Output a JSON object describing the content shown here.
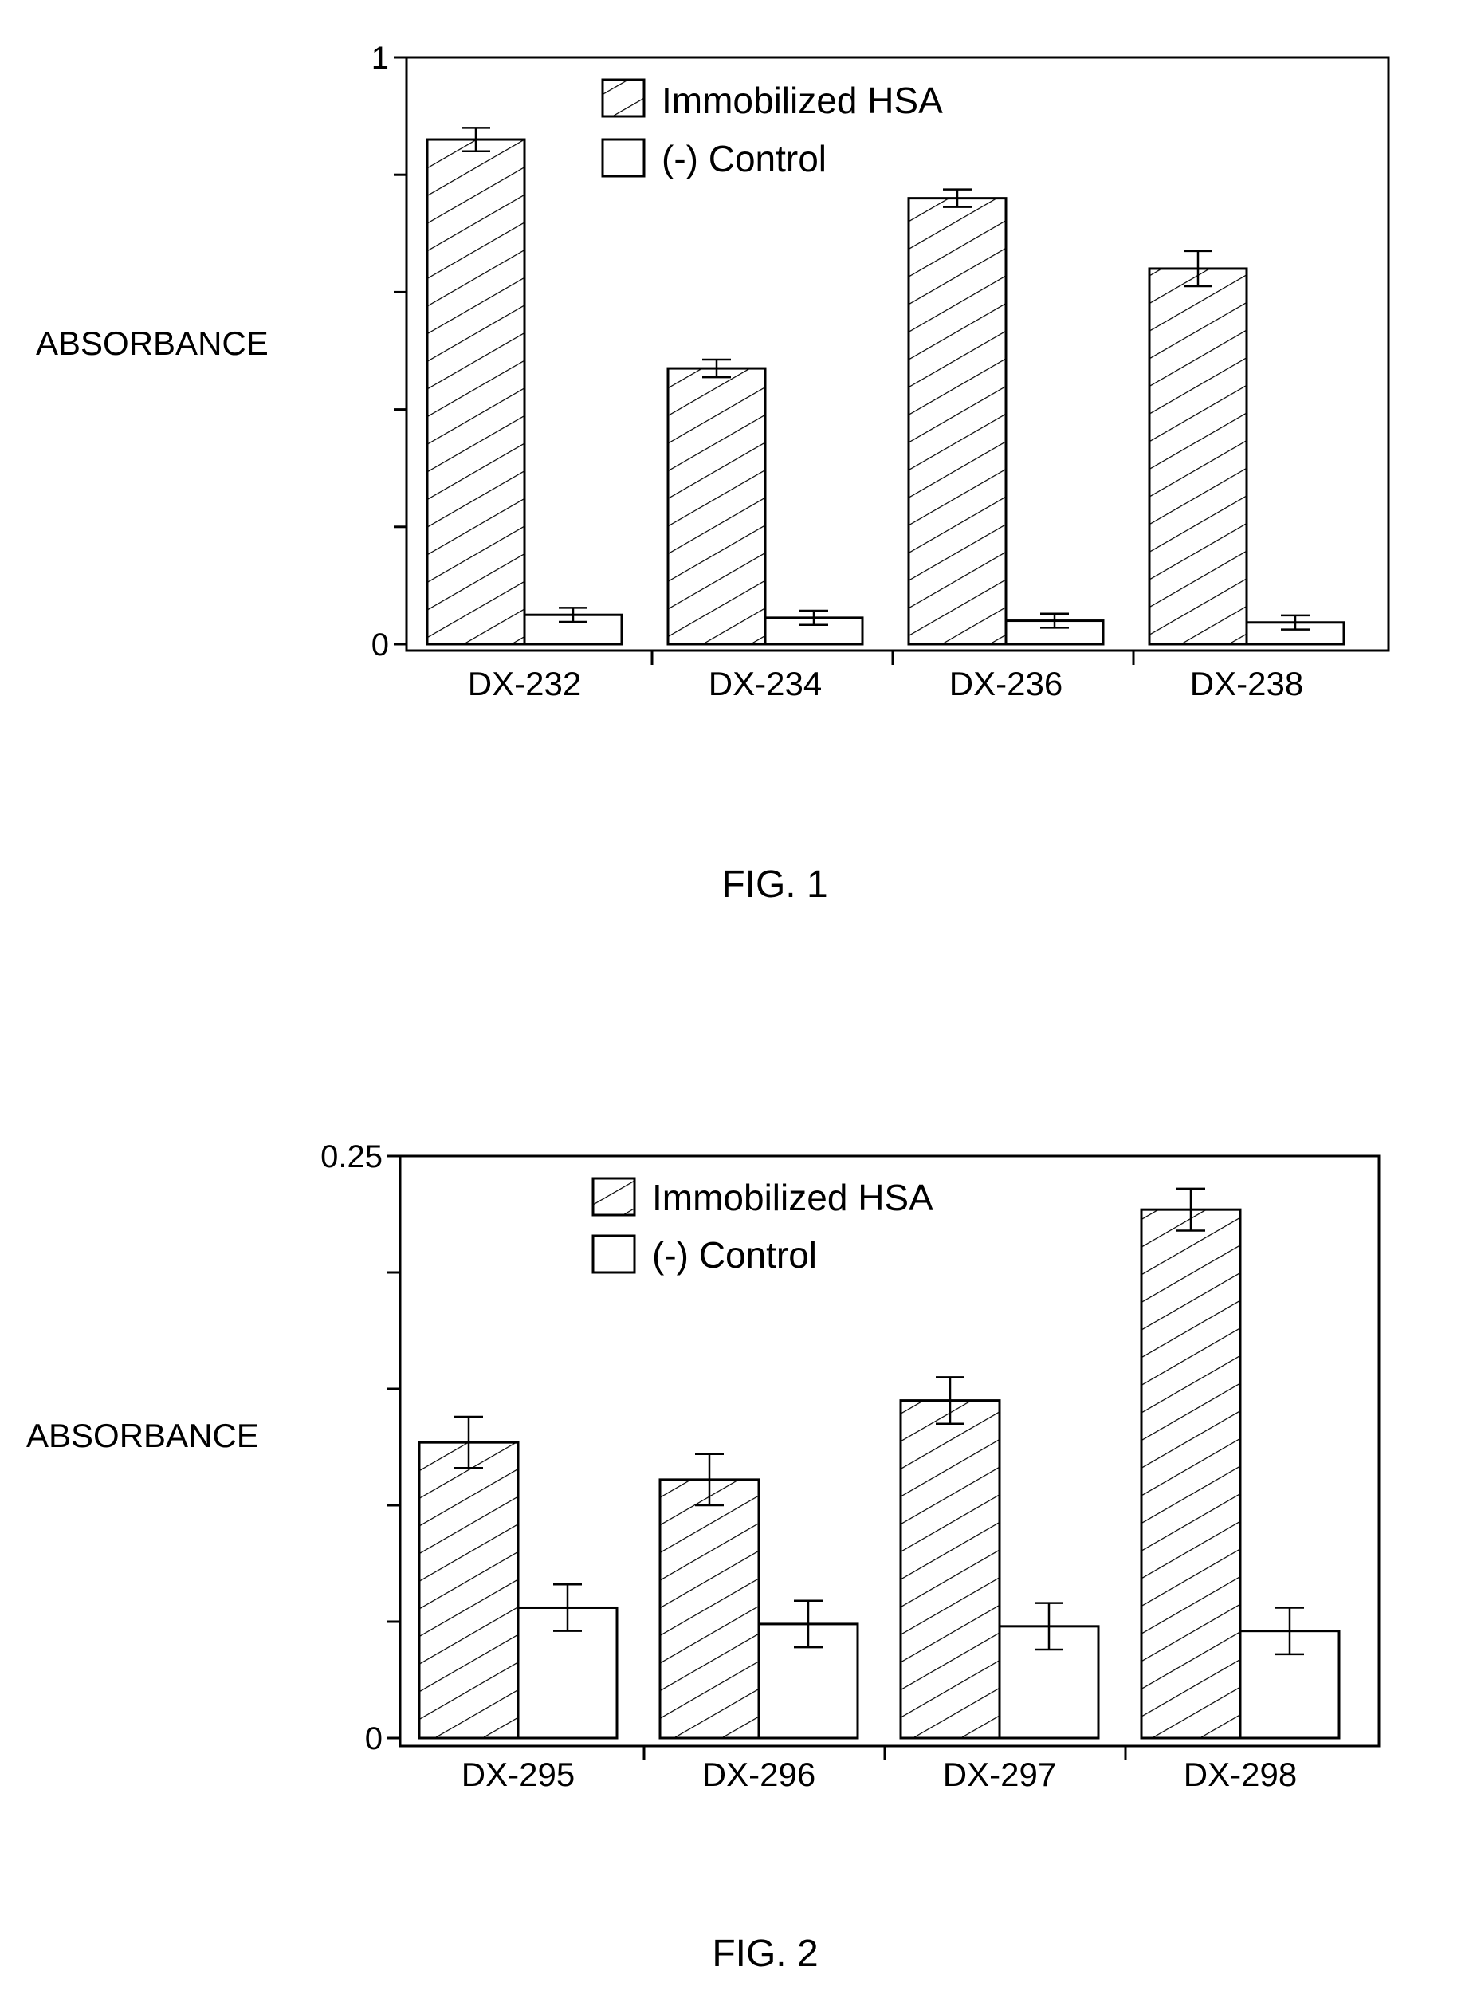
{
  "figures": [
    {
      "caption": "FIG. 1",
      "chart_data": {
        "type": "bar",
        "title": "",
        "xlabel": "",
        "ylabel": "ABSORBANCE",
        "ylim": [
          0,
          1
        ],
        "ytick_labels": [
          {
            "value": 0,
            "label": "0"
          },
          {
            "value": 1,
            "label": "1"
          }
        ],
        "ytick_values": [
          0,
          0.2,
          0.4,
          0.6,
          0.8,
          1
        ],
        "categories": [
          "DX-232",
          "DX-234",
          "DX-236",
          "DX-238"
        ],
        "series": [
          {
            "name": "Immobilized HSA",
            "pattern": "hatched",
            "values": [
              0.86,
              0.47,
              0.76,
              0.64
            ],
            "errors": [
              0.02,
              0.015,
              0.015,
              0.03
            ]
          },
          {
            "name": "(-) Control",
            "pattern": "open",
            "values": [
              0.05,
              0.045,
              0.04,
              0.037
            ],
            "errors": [
              0.012,
              0.012,
              0.012,
              0.012
            ]
          }
        ],
        "legend_position": "top-center",
        "grid": false
      }
    },
    {
      "caption": "FIG. 2",
      "chart_data": {
        "type": "bar",
        "title": "",
        "xlabel": "",
        "ylabel": "ABSORBANCE",
        "ylim": [
          0,
          0.25
        ],
        "ytick_labels": [
          {
            "value": 0,
            "label": "0"
          },
          {
            "value": 0.25,
            "label": "0.25"
          }
        ],
        "ytick_values": [
          0,
          0.05,
          0.1,
          0.15,
          0.2,
          0.25
        ],
        "categories": [
          "DX-295",
          "DX-296",
          "DX-297",
          "DX-298"
        ],
        "series": [
          {
            "name": "Immobilized HSA",
            "pattern": "hatched",
            "values": [
              0.127,
              0.111,
              0.145,
              0.227
            ],
            "errors": [
              0.011,
              0.011,
              0.01,
              0.009
            ]
          },
          {
            "name": "(-) Control",
            "pattern": "open",
            "values": [
              0.056,
              0.049,
              0.048,
              0.046
            ],
            "errors": [
              0.01,
              0.01,
              0.01,
              0.01
            ]
          }
        ],
        "legend_position": "top-center",
        "grid": false
      }
    }
  ]
}
